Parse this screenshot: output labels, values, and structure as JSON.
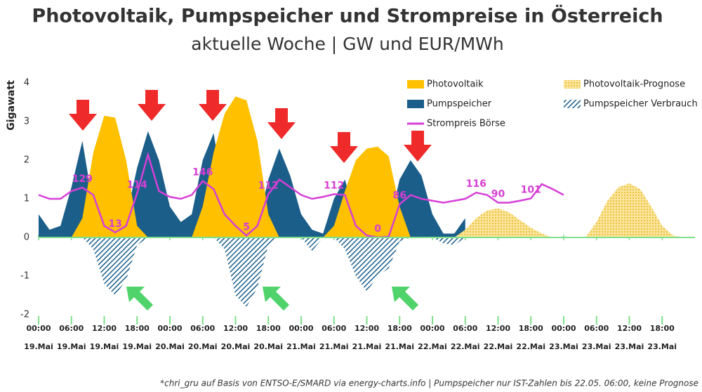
{
  "chart_data": {
    "type": "area",
    "title": "Photovoltaik, Pumpspeicher und Strompreise in Österreich",
    "subtitle": "aktuelle Woche | GW und EUR/MWh",
    "y_label": "Gigawatt",
    "footnote": "*chri_gru auf Basis von ENTSO-E/SMARD via energy-charts.info | Pumpspeicher nur IST-Zahlen bis 22.05. 06:00, keine Prognose",
    "x": [
      "19.Mai 00:00",
      "19.Mai 02:00",
      "19.Mai 04:00",
      "19.Mai 06:00",
      "19.Mai 08:00",
      "19.Mai 10:00",
      "19.Mai 12:00",
      "19.Mai 14:00",
      "19.Mai 16:00",
      "19.Mai 18:00",
      "19.Mai 20:00",
      "19.Mai 22:00",
      "20.Mai 00:00",
      "20.Mai 02:00",
      "20.Mai 04:00",
      "20.Mai 06:00",
      "20.Mai 08:00",
      "20.Mai 10:00",
      "20.Mai 12:00",
      "20.Mai 14:00",
      "20.Mai 16:00",
      "20.Mai 18:00",
      "20.Mai 20:00",
      "20.Mai 22:00",
      "21.Mai 00:00",
      "21.Mai 02:00",
      "21.Mai 04:00",
      "21.Mai 06:00",
      "21.Mai 08:00",
      "21.Mai 10:00",
      "21.Mai 12:00",
      "21.Mai 14:00",
      "21.Mai 16:00",
      "21.Mai 18:00",
      "21.Mai 20:00",
      "21.Mai 22:00",
      "22.Mai 00:00",
      "22.Mai 02:00",
      "22.Mai 04:00",
      "22.Mai 06:00",
      "22.Mai 08:00",
      "22.Mai 10:00",
      "22.Mai 12:00",
      "22.Mai 14:00",
      "22.Mai 16:00",
      "22.Mai 18:00",
      "22.Mai 20:00",
      "22.Mai 22:00",
      "23.Mai 00:00",
      "23.Mai 02:00",
      "23.Mai 04:00",
      "23.Mai 06:00",
      "23.Mai 08:00",
      "23.Mai 10:00",
      "23.Mai 12:00",
      "23.Mai 14:00",
      "23.Mai 16:00",
      "23.Mai 18:00",
      "23.Mai 20:00",
      "23.Mai 22:00",
      "24.Mai 00:00"
    ],
    "xlim": [
      "19.Mai 00:00",
      "24.Mai 00:00"
    ],
    "xticks": [
      {
        "time": "00:00",
        "date": "19.Mai"
      },
      {
        "time": "06:00",
        "date": "19.Mai"
      },
      {
        "time": "12:00",
        "date": "19.Mai"
      },
      {
        "time": "18:00",
        "date": "19.Mai"
      },
      {
        "time": "00:00",
        "date": "20.Mai"
      },
      {
        "time": "06:00",
        "date": "20.Mai"
      },
      {
        "time": "12:00",
        "date": "20.Mai"
      },
      {
        "time": "18:00",
        "date": "20.Mai"
      },
      {
        "time": "00:00",
        "date": "21.Mai"
      },
      {
        "time": "06:00",
        "date": "21.Mai"
      },
      {
        "time": "12:00",
        "date": "21.Mai"
      },
      {
        "time": "18:00",
        "date": "21.Mai"
      },
      {
        "time": "00:00",
        "date": "22.Mai"
      },
      {
        "time": "06:00",
        "date": "22.Mai"
      },
      {
        "time": "12:00",
        "date": "22.Mai"
      },
      {
        "time": "18:00",
        "date": "22.Mai"
      },
      {
        "time": "00:00",
        "date": "23.Mai"
      },
      {
        "time": "06:00",
        "date": "23.Mai"
      },
      {
        "time": "12:00",
        "date": "23.Mai"
      },
      {
        "time": "18:00",
        "date": "23.Mai"
      }
    ],
    "ylim": [
      -2,
      4
    ],
    "yticks": [
      -2,
      -1,
      0,
      1,
      2,
      3,
      4
    ],
    "y2lim": [
      -200,
      400
    ],
    "series": [
      {
        "name": "Photovoltaik",
        "color": "#ffc000",
        "fill": "solid",
        "values": [
          0,
          0,
          0,
          0,
          0.5,
          2.2,
          3.15,
          3.1,
          2.0,
          0.3,
          0,
          0,
          0,
          0,
          0,
          0.8,
          2.2,
          3.2,
          3.65,
          3.55,
          2.5,
          0.6,
          0,
          0,
          0,
          0,
          0,
          0.3,
          1.2,
          2.0,
          2.3,
          2.35,
          2.1,
          0.8,
          0,
          0,
          0,
          0,
          0,
          0,
          null,
          null,
          null,
          null,
          null,
          null,
          null,
          null,
          null,
          null,
          null,
          null,
          null,
          null,
          null,
          null,
          null,
          null,
          null,
          null,
          null
        ]
      },
      {
        "name": "Photovoltaik-Prognose",
        "color": "#f2c94c",
        "fill": "dots",
        "values": [
          null,
          null,
          null,
          null,
          null,
          null,
          null,
          null,
          null,
          null,
          null,
          null,
          null,
          null,
          null,
          null,
          null,
          null,
          null,
          null,
          null,
          null,
          null,
          null,
          null,
          null,
          null,
          null,
          null,
          null,
          null,
          null,
          null,
          null,
          null,
          null,
          null,
          null,
          0,
          0.2,
          0.5,
          0.7,
          0.75,
          0.65,
          0.45,
          0.25,
          0.1,
          0,
          0,
          0,
          0,
          0.4,
          0.95,
          1.3,
          1.4,
          1.25,
          0.8,
          0.3,
          0.05,
          0,
          0
        ]
      },
      {
        "name": "Pumpspeicher",
        "color": "#1b5e8a",
        "fill": "solid",
        "values": [
          0.6,
          0.2,
          0.3,
          1.3,
          2.5,
          0.8,
          0,
          0,
          0.5,
          1.8,
          2.75,
          2.0,
          0.8,
          0.4,
          0.6,
          2.0,
          2.7,
          1.0,
          0,
          0,
          0.3,
          1.5,
          2.3,
          1.6,
          0.6,
          0.2,
          0.1,
          1.0,
          1.5,
          0.5,
          0,
          0,
          0.3,
          1.5,
          2.0,
          1.6,
          0.6,
          0.1,
          0.1,
          0.5,
          null,
          null,
          null,
          null,
          null,
          null,
          null,
          null,
          null,
          null,
          null,
          null,
          null,
          null,
          null,
          null,
          null,
          null,
          null,
          null,
          null
        ]
      },
      {
        "name": "Pumpspeicher Verbrauch",
        "color": "#1b5e8a",
        "fill": "hatch",
        "values": [
          0,
          0,
          0,
          0,
          0,
          -0.3,
          -1.2,
          -1.5,
          -1.1,
          -0.2,
          0,
          0,
          0,
          0,
          0,
          0,
          0,
          -0.3,
          -1.5,
          -1.8,
          -1.3,
          -0.2,
          0,
          0,
          0,
          -0.35,
          0,
          0,
          -0.3,
          -1.0,
          -1.4,
          -1.0,
          -0.8,
          -0.1,
          0,
          0,
          0,
          -0.15,
          -0.2,
          0,
          null,
          null,
          null,
          null,
          null,
          null,
          null,
          null,
          null,
          null,
          null,
          null,
          null,
          null,
          null,
          null,
          null,
          null,
          null,
          null,
          null
        ]
      },
      {
        "name": "Strompreis Börse",
        "color": "#d63fd6",
        "fill": "line",
        "axis": "y2",
        "values": [
          110,
          100,
          100,
          120,
          129,
          110,
          30,
          13,
          30,
          114,
          214,
          120,
          105,
          100,
          110,
          146,
          125,
          60,
          30,
          5,
          30,
          112,
          150,
          130,
          110,
          100,
          105,
          112,
          110,
          30,
          5,
          0,
          2,
          86,
          110,
          100,
          95,
          90,
          95,
          100,
          116,
          110,
          90,
          90,
          95,
          101,
          138,
          125,
          110,
          null,
          null,
          null,
          null,
          null,
          null,
          null,
          null,
          null,
          null,
          null,
          null
        ],
        "value_labels": [
          null,
          null,
          null,
          null,
          "129",
          null,
          null,
          "13",
          null,
          "114",
          null,
          null,
          null,
          null,
          null,
          "146",
          null,
          null,
          null,
          "5",
          null,
          "112",
          null,
          null,
          null,
          null,
          null,
          "112",
          null,
          null,
          null,
          "0",
          null,
          "86",
          null,
          null,
          null,
          null,
          null,
          null,
          "116",
          null,
          "90",
          null,
          null,
          "101",
          null,
          null,
          null,
          null,
          null,
          null,
          null,
          null,
          null,
          null,
          null,
          null,
          null,
          null,
          null
        ]
      }
    ]
  }
}
